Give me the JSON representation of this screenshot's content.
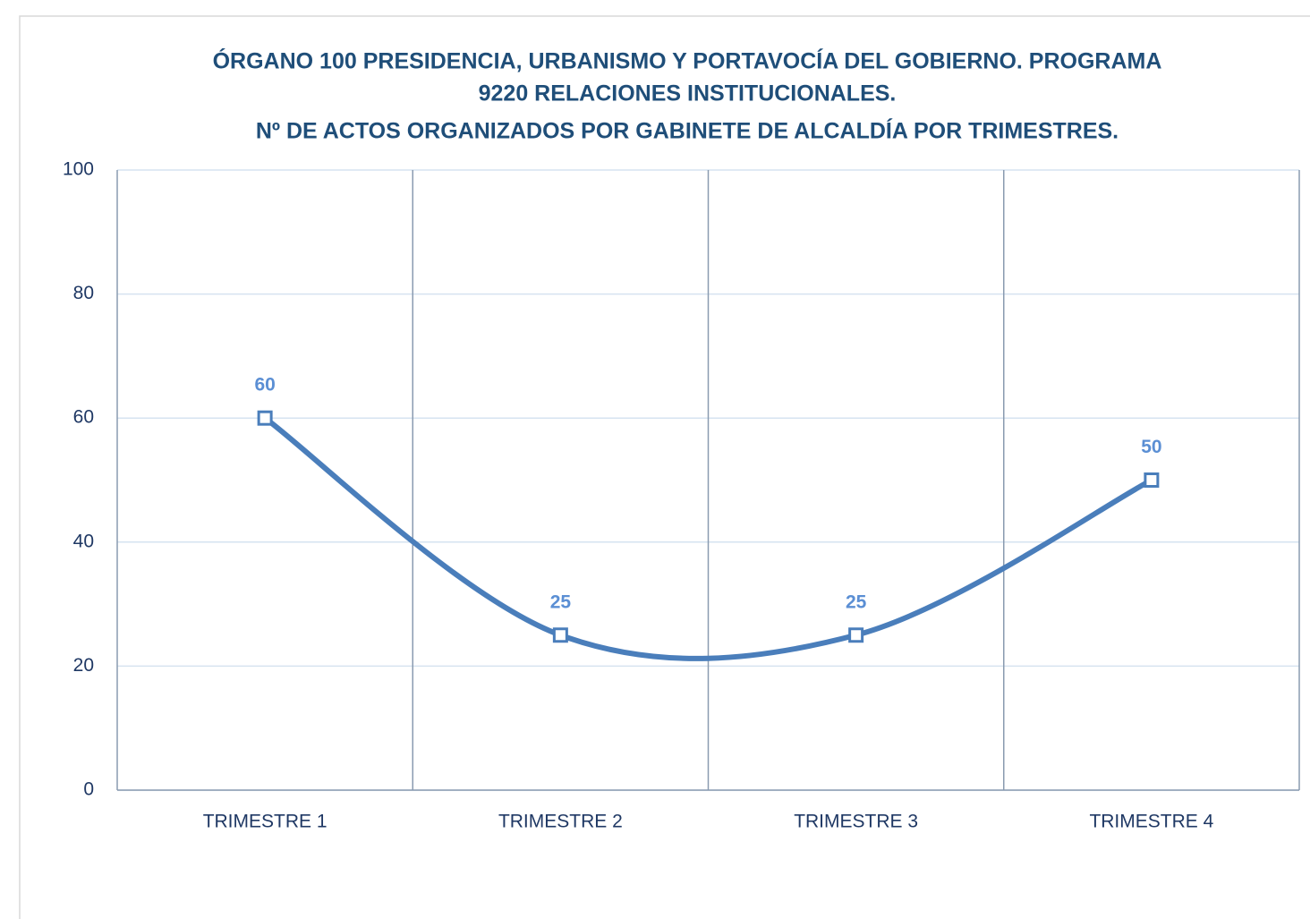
{
  "chart_data": {
    "type": "line",
    "title": [
      "ÓRGANO 100 PRESIDENCIA, URBANISMO Y PORTAVOCÍA DEL GOBIERNO. PROGRAMA",
      "9220 RELACIONES INSTITUCIONALES.",
      "Nº DE ACTOS ORGANIZADOS POR GABINETE DE ALCALDÍA POR TRIMESTRES."
    ],
    "categories": [
      "TRIMESTRE 1",
      "TRIMESTRE 2",
      "TRIMESTRE 3",
      "TRIMESTRE 4"
    ],
    "values": [
      60,
      25,
      25,
      50
    ],
    "color": "#4a7ebb",
    "label_color": "#5b8fd4",
    "smooth": true,
    "ylim": [
      0,
      100
    ],
    "yticks": [
      0,
      20,
      40,
      60,
      80,
      100
    ],
    "grid": true
  }
}
